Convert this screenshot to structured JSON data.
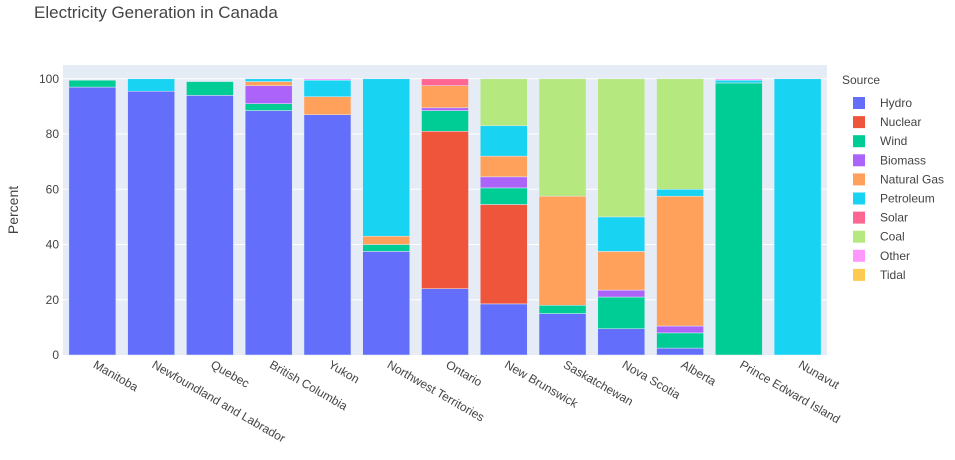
{
  "chart_data": {
    "type": "bar",
    "stacked": true,
    "title": "Electricity Generation in Canada",
    "xlabel": "",
    "ylabel": "Percent",
    "ylim": [
      0,
      105
    ],
    "yticks": [
      0,
      20,
      40,
      60,
      80,
      100
    ],
    "legend_title": "Source",
    "legend_position": "right",
    "grid": true,
    "categories": [
      "Manitoba",
      "Newfoundland and Labrador",
      "Quebec",
      "British Columbia",
      "Yukon",
      "Northwest Territories",
      "Ontario",
      "New Brunswick",
      "Saskatchewan",
      "Nova Scotia",
      "Alberta",
      "Prince Edward Island",
      "Nunavut"
    ],
    "series": [
      {
        "name": "Hydro",
        "color": "#636efa",
        "values": [
          97,
          95.5,
          94,
          88.5,
          87,
          37.5,
          24,
          18.5,
          15,
          9.5,
          2.5,
          0,
          0
        ]
      },
      {
        "name": "Nuclear",
        "color": "#ef553b",
        "values": [
          0,
          0,
          0,
          0,
          0,
          0,
          57,
          36,
          0,
          0,
          0,
          0,
          0
        ]
      },
      {
        "name": "Wind",
        "color": "#00cc96",
        "values": [
          2.5,
          0,
          5,
          2.5,
          0,
          2.5,
          7.5,
          6,
          3,
          11.5,
          5.5,
          98.5,
          0
        ]
      },
      {
        "name": "Biomass",
        "color": "#ab63fa",
        "values": [
          0,
          0,
          0,
          6.5,
          0,
          0,
          1,
          4,
          0,
          2.5,
          2.5,
          0,
          0
        ]
      },
      {
        "name": "Natural Gas",
        "color": "#ffa15a",
        "values": [
          0,
          0,
          0,
          1.5,
          6.5,
          3,
          8,
          7.5,
          39.5,
          14,
          47,
          0,
          0
        ]
      },
      {
        "name": "Petroleum",
        "color": "#19d3f3",
        "values": [
          0,
          4.5,
          0,
          1,
          6,
          57,
          0,
          11,
          0,
          12.5,
          2.5,
          1,
          100
        ]
      },
      {
        "name": "Solar",
        "color": "#ff6692",
        "values": [
          0,
          0,
          0,
          0,
          0,
          0,
          2.5,
          0,
          0,
          0,
          0,
          0,
          0
        ]
      },
      {
        "name": "Coal",
        "color": "#b6e880",
        "values": [
          0,
          0,
          0,
          0,
          0,
          0,
          0,
          17,
          42.5,
          50,
          40,
          0,
          0
        ]
      },
      {
        "name": "Other",
        "color": "#ff97ff",
        "values": [
          0,
          0,
          0,
          0,
          0.5,
          0,
          0,
          0,
          0,
          0,
          0,
          0.5,
          0
        ]
      },
      {
        "name": "Tidal",
        "color": "#fecb52",
        "values": [
          0,
          0,
          0,
          0,
          0,
          0,
          0,
          0,
          0,
          0,
          0,
          0,
          0
        ]
      }
    ]
  }
}
